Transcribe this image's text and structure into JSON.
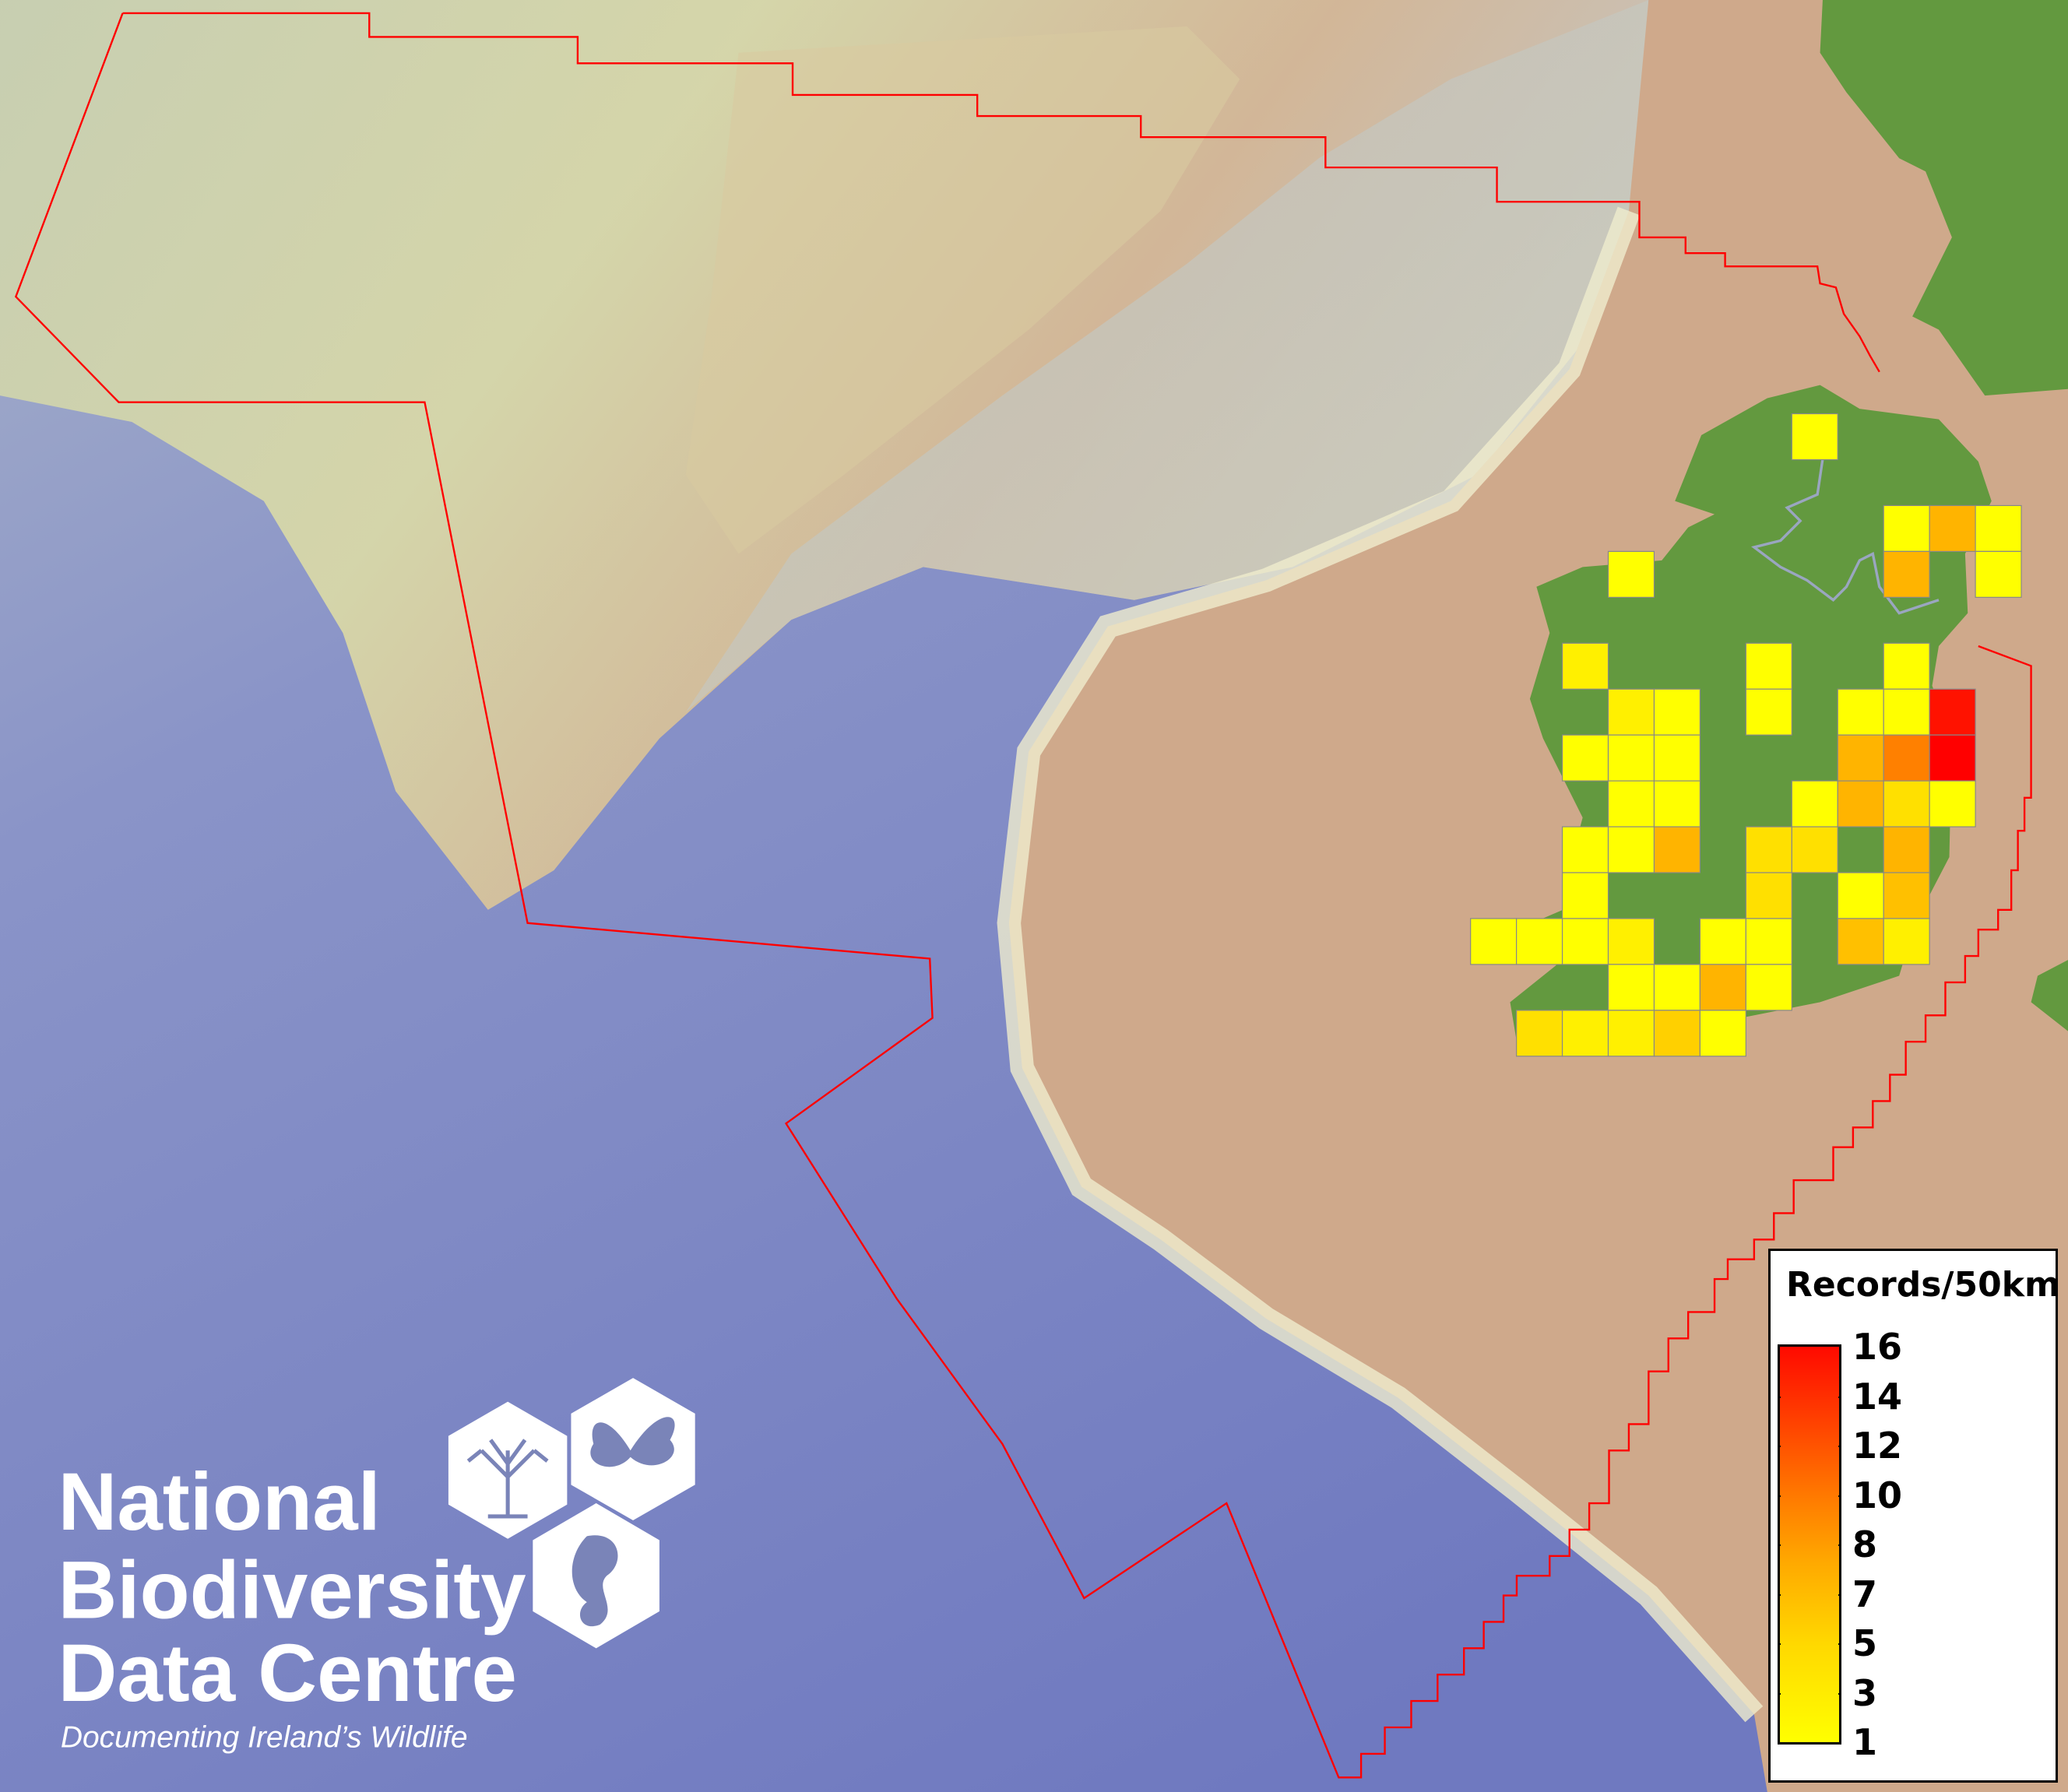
{
  "legend": {
    "title": "Records/50km",
    "ticks": [
      "16",
      "14",
      "12",
      "10",
      "8",
      "7",
      "5",
      "3",
      "1"
    ],
    "color_min": "#ffff00",
    "color_max": "#ff0000"
  },
  "logo": {
    "line1": "National",
    "line2": "Biodiversity",
    "line3": "Data Centre",
    "tagline": "Documenting Ireland’s Wildlife",
    "icons": [
      "tree-icon",
      "butterfly-icon",
      "seahorse-icon"
    ]
  },
  "colors": {
    "boundary": "#ff0000",
    "land": "#63993f",
    "shelf_shallow": "#cfa98a",
    "deep_ocean": "#7a84c4",
    "cell_border": "#888888"
  },
  "grid_cells": [
    {
      "col": 7,
      "row": 0,
      "value": 1
    },
    {
      "col": 9,
      "row": 2,
      "value": 1
    },
    {
      "col": 10,
      "row": 2,
      "value": 6
    },
    {
      "col": 11,
      "row": 2,
      "value": 1
    },
    {
      "col": 3,
      "row": 3,
      "value": 1
    },
    {
      "col": 9,
      "row": 3,
      "value": 6
    },
    {
      "col": 11,
      "row": 3,
      "value": 1
    },
    {
      "col": 2,
      "row": 5,
      "value": 2
    },
    {
      "col": 6,
      "row": 5,
      "value": 1
    },
    {
      "col": 9,
      "row": 5,
      "value": 1
    },
    {
      "col": 3,
      "row": 6,
      "value": 2
    },
    {
      "col": 4,
      "row": 6,
      "value": 1
    },
    {
      "col": 6,
      "row": 6,
      "value": 1
    },
    {
      "col": 8,
      "row": 6,
      "value": 1
    },
    {
      "col": 9,
      "row": 6,
      "value": 1
    },
    {
      "col": 10,
      "row": 6,
      "value": 15
    },
    {
      "col": 2,
      "row": 7,
      "value": 1
    },
    {
      "col": 3,
      "row": 7,
      "value": 1
    },
    {
      "col": 4,
      "row": 7,
      "value": 1
    },
    {
      "col": 8,
      "row": 7,
      "value": 6
    },
    {
      "col": 9,
      "row": 7,
      "value": 9
    },
    {
      "col": 10,
      "row": 7,
      "value": 16
    },
    {
      "col": 3,
      "row": 8,
      "value": 1
    },
    {
      "col": 4,
      "row": 8,
      "value": 1
    },
    {
      "col": 7,
      "row": 8,
      "value": 1
    },
    {
      "col": 8,
      "row": 8,
      "value": 6
    },
    {
      "col": 9,
      "row": 8,
      "value": 3
    },
    {
      "col": 10,
      "row": 8,
      "value": 1
    },
    {
      "col": 2,
      "row": 9,
      "value": 1
    },
    {
      "col": 3,
      "row": 9,
      "value": 1
    },
    {
      "col": 4,
      "row": 9,
      "value": 6
    },
    {
      "col": 6,
      "row": 9,
      "value": 3
    },
    {
      "col": 7,
      "row": 9,
      "value": 3
    },
    {
      "col": 9,
      "row": 9,
      "value": 6
    },
    {
      "col": 2,
      "row": 10,
      "value": 1
    },
    {
      "col": 6,
      "row": 10,
      "value": 3
    },
    {
      "col": 8,
      "row": 10,
      "value": 1
    },
    {
      "col": 9,
      "row": 10,
      "value": 5
    },
    {
      "col": 0,
      "row": 11,
      "value": 1
    },
    {
      "col": 1,
      "row": 11,
      "value": 1
    },
    {
      "col": 2,
      "row": 11,
      "value": 1
    },
    {
      "col": 3,
      "row": 11,
      "value": 2
    },
    {
      "col": 5,
      "row": 11,
      "value": 1
    },
    {
      "col": 6,
      "row": 11,
      "value": 1
    },
    {
      "col": 8,
      "row": 11,
      "value": 5
    },
    {
      "col": 9,
      "row": 11,
      "value": 2
    },
    {
      "col": 3,
      "row": 12,
      "value": 1
    },
    {
      "col": 4,
      "row": 12,
      "value": 1
    },
    {
      "col": 5,
      "row": 12,
      "value": 6
    },
    {
      "col": 6,
      "row": 12,
      "value": 1
    },
    {
      "col": 1,
      "row": 13,
      "value": 3
    },
    {
      "col": 2,
      "row": 13,
      "value": 2
    },
    {
      "col": 3,
      "row": 13,
      "value": 2
    },
    {
      "col": 4,
      "row": 13,
      "value": 4
    },
    {
      "col": 5,
      "row": 13,
      "value": 1
    }
  ]
}
